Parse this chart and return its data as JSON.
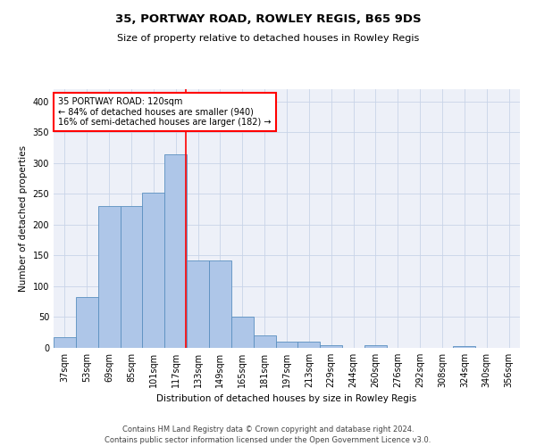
{
  "title1": "35, PORTWAY ROAD, ROWLEY REGIS, B65 9DS",
  "title2": "Size of property relative to detached houses in Rowley Regis",
  "xlabel": "Distribution of detached houses by size in Rowley Regis",
  "ylabel": "Number of detached properties",
  "footer1": "Contains HM Land Registry data © Crown copyright and database right 2024.",
  "footer2": "Contains public sector information licensed under the Open Government Licence v3.0.",
  "categories": [
    "37sqm",
    "53sqm",
    "69sqm",
    "85sqm",
    "101sqm",
    "117sqm",
    "133sqm",
    "149sqm",
    "165sqm",
    "181sqm",
    "197sqm",
    "213sqm",
    "229sqm",
    "244sqm",
    "260sqm",
    "276sqm",
    "292sqm",
    "308sqm",
    "324sqm",
    "340sqm",
    "356sqm"
  ],
  "values": [
    18,
    82,
    230,
    230,
    252,
    315,
    142,
    142,
    51,
    20,
    10,
    10,
    5,
    0,
    4,
    0,
    0,
    0,
    3,
    0,
    0
  ],
  "bar_color": "#aec6e8",
  "bar_edge_color": "#5a8fc0",
  "annotation_text_line1": "35 PORTWAY ROAD: 120sqm",
  "annotation_text_line2": "← 84% of detached houses are smaller (940)",
  "annotation_text_line3": "16% of semi-detached houses are larger (182) →",
  "vline_color": "red",
  "vline_x_index": 5.45,
  "annotation_box_facecolor": "white",
  "annotation_box_edgecolor": "red",
  "ylim": [
    0,
    420
  ],
  "yticks": [
    0,
    50,
    100,
    150,
    200,
    250,
    300,
    350,
    400
  ],
  "grid_color": "#c8d4e8",
  "background_color": "#edf0f8",
  "title1_fontsize": 9.5,
  "title2_fontsize": 8,
  "ylabel_fontsize": 7.5,
  "xlabel_fontsize": 7.5,
  "tick_fontsize": 7,
  "annot_fontsize": 7,
  "footer_fontsize": 6
}
